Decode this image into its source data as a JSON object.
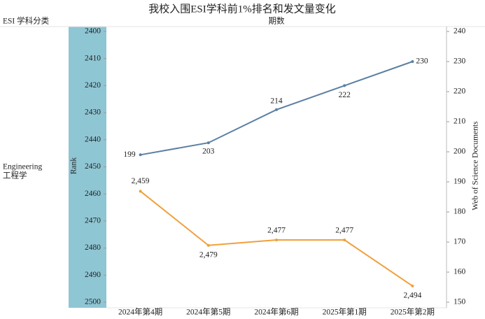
{
  "chart_data": {
    "type": "line",
    "title": "我校入围ESI学科前1%排名和发文量变化",
    "row_header": "ESI 学科分类",
    "column_header": "期数",
    "row_label": [
      "Engineering",
      "工程学"
    ],
    "categories": [
      "2024年第4期",
      "2024年第5期",
      "2024年第6期",
      "2025年第1期",
      "2025年第2期"
    ],
    "y_label": "Rank",
    "y2_label": "Web of Science Documents",
    "ylim": [
      2500,
      2400
    ],
    "yticks": [
      2400,
      2410,
      2420,
      2430,
      2440,
      2450,
      2460,
      2470,
      2480,
      2490,
      2500
    ],
    "y2lim": [
      150,
      240
    ],
    "y2ticks": [
      150,
      160,
      170,
      180,
      190,
      200,
      210,
      220,
      230,
      240
    ],
    "series": [
      {
        "color": "#f0a03c",
        "values": [
          2459,
          2479,
          2477,
          2477,
          2494
        ],
        "value_labels": [
          "2,459",
          "2,479",
          "2,477",
          "2,477",
          "2,494"
        ]
      },
      {
        "color": "#5b7fa3",
        "axis": "y2",
        "values": [
          199,
          203,
          214,
          222,
          230
        ]
      }
    ]
  }
}
